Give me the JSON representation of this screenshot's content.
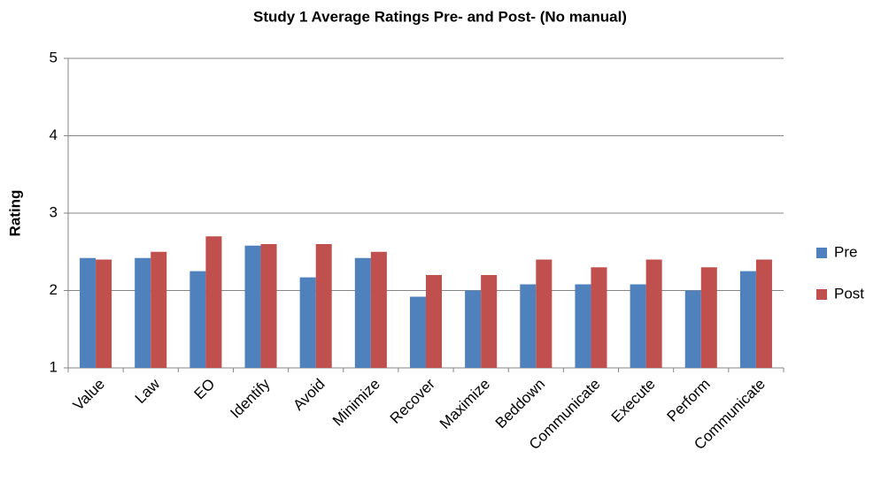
{
  "chart_data": {
    "type": "bar",
    "title": "Study 1 Average Ratings Pre- and Post- (No manual)",
    "y_label": "Rating",
    "categories": [
      "Value",
      "Law",
      "EO",
      "Identify",
      "Avoid",
      "Minimize",
      "Recover",
      "Maximize",
      "Beddown",
      "Communicate",
      "Execute",
      "Perform",
      "Communicate"
    ],
    "series": [
      {
        "name": "Pre",
        "color": "#4f81bd",
        "values": [
          2.42,
          2.42,
          2.25,
          2.58,
          2.17,
          2.42,
          1.92,
          2.0,
          2.08,
          2.08,
          2.08,
          2.0,
          2.25
        ]
      },
      {
        "name": "Post",
        "color": "#c0504d",
        "values": [
          2.4,
          2.5,
          2.7,
          2.6,
          2.6,
          2.5,
          2.2,
          2.2,
          2.4,
          2.3,
          2.4,
          2.3,
          2.4
        ]
      }
    ],
    "ylim": [
      1,
      5
    ],
    "yticks": [
      1,
      2,
      3,
      4,
      5
    ],
    "grid": true,
    "legend": "right"
  }
}
